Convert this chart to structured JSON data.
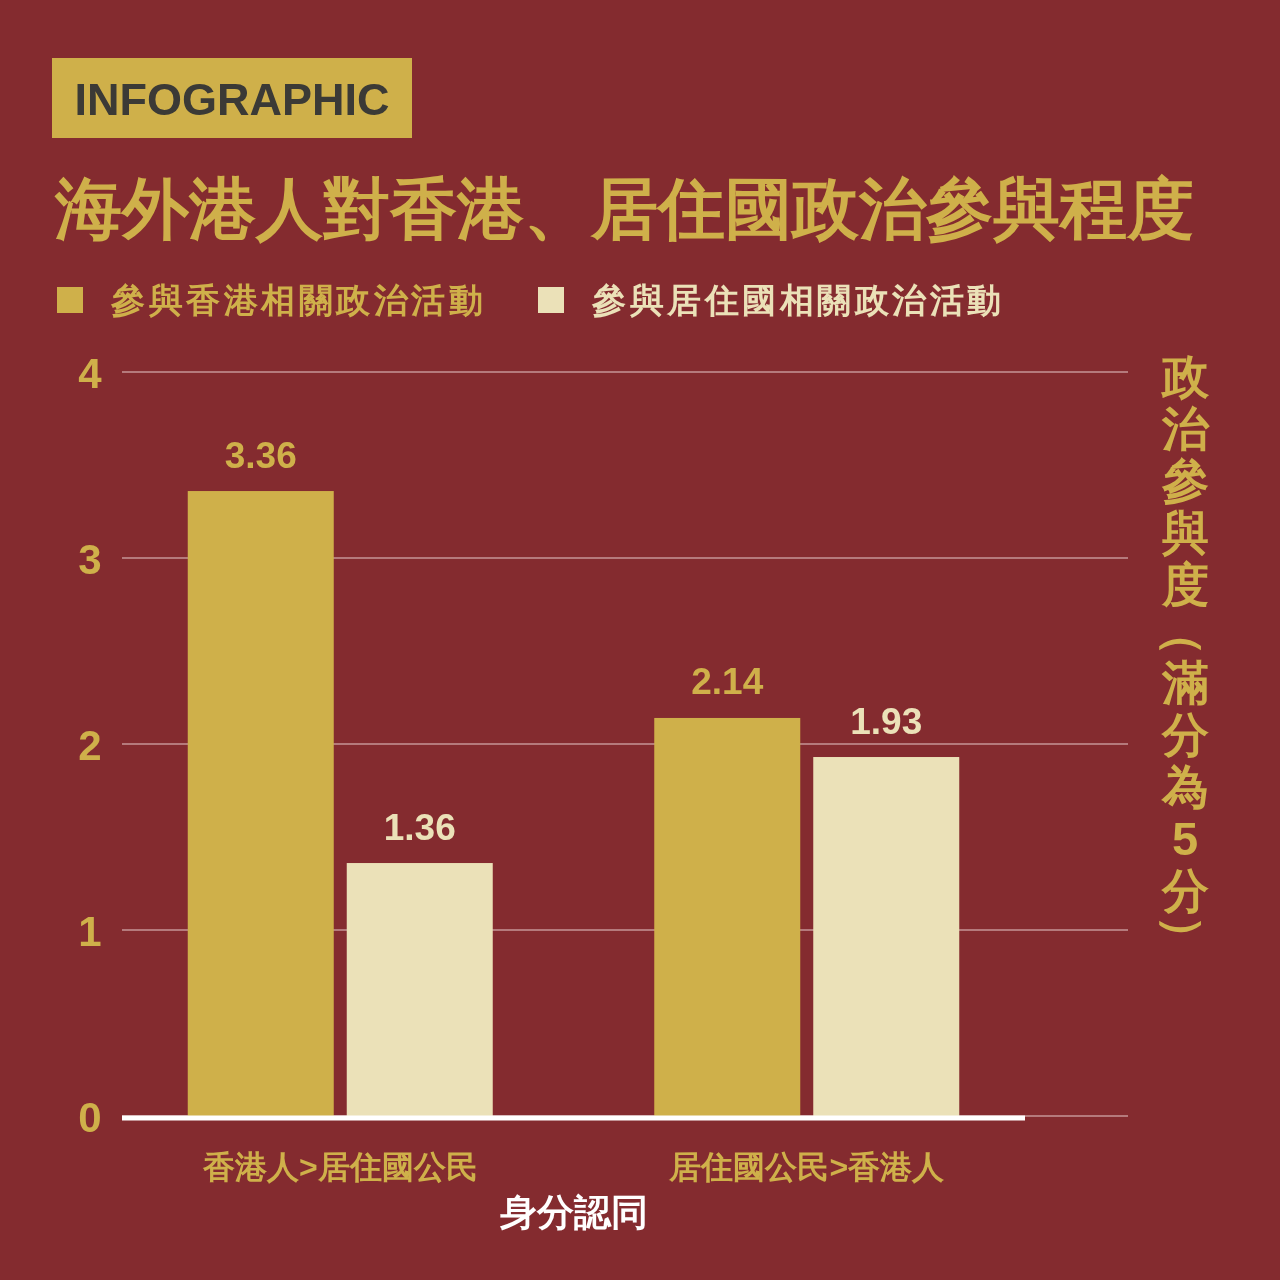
{
  "chart_data": {
    "type": "bar",
    "title": "海外港人對香港、居住國政治參與程度",
    "annotations": [
      "INFOGRAPHIC"
    ],
    "xlabel": "身分認同",
    "ylabel": "政治參與度（滿分為5分）",
    "categories": [
      "香港人>居住國公民",
      "居住國公民>香港人"
    ],
    "series": [
      {
        "name": "參與香港相關政治活動",
        "color": "#cfb04a",
        "values": [
          3.36,
          2.14
        ]
      },
      {
        "name": "參與居住國相關政治活動",
        "color": "#ebe1b8",
        "values": [
          1.36,
          1.93
        ]
      }
    ],
    "ylim": [
      0,
      4
    ],
    "yticks": [
      0,
      1,
      2,
      3,
      4
    ],
    "grid": "y",
    "legend": "top left",
    "data_labels": true
  }
}
